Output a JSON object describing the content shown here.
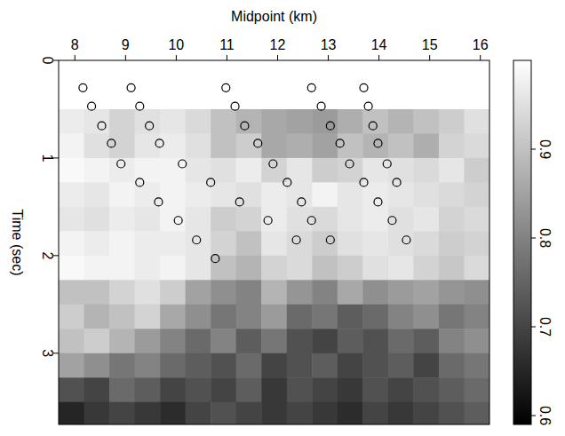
{
  "chart_data": {
    "type": "heatmap",
    "x_label": "Midpoint (km)",
    "y_label": "Time (sec)",
    "xlim": [
      7.68,
      16.18
    ],
    "xticks": [
      8,
      9,
      10,
      11,
      12,
      13,
      14,
      15,
      16
    ],
    "ylim": [
      0,
      3.73
    ],
    "yticks": [
      0,
      1,
      2,
      3
    ],
    "cells": {
      "x": [
        7.93,
        8.43,
        8.93,
        9.43,
        9.93,
        10.43,
        10.93,
        11.43,
        11.93,
        12.43,
        12.93,
        13.43,
        13.93,
        14.43,
        14.93,
        15.43,
        15.93
      ],
      "y": [
        0.125,
        0.375,
        0.625,
        0.875,
        1.125,
        1.375,
        1.625,
        1.875,
        2.125,
        2.375,
        2.625,
        2.875,
        3.125,
        3.375,
        3.625
      ],
      "values": [
        [
          1,
          1,
          1,
          1,
          1,
          1,
          1,
          1,
          1,
          1,
          1,
          1,
          1,
          1,
          1,
          1,
          1
        ],
        [
          1,
          1,
          1,
          1,
          1,
          1,
          1,
          1,
          1,
          1,
          1,
          1,
          1,
          1,
          1,
          1,
          1
        ],
        [
          0.97,
          0.96,
          0.93,
          0.95,
          0.96,
          0.94,
          0.9,
          0.88,
          0.86,
          0.85,
          0.84,
          0.87,
          0.9,
          0.88,
          0.9,
          0.92,
          0.95
        ],
        [
          0.98,
          0.95,
          0.93,
          0.96,
          0.97,
          0.95,
          0.9,
          0.92,
          0.86,
          0.87,
          0.85,
          0.9,
          0.88,
          0.9,
          0.87,
          0.93,
          0.94
        ],
        [
          0.99,
          0.98,
          0.97,
          0.98,
          0.98,
          0.96,
          0.95,
          0.97,
          0.93,
          0.96,
          0.92,
          0.93,
          0.96,
          0.95,
          0.94,
          0.96,
          0.92
        ],
        [
          0.97,
          0.96,
          0.98,
          0.97,
          0.98,
          0.97,
          0.96,
          0.95,
          0.97,
          0.96,
          0.98,
          0.96,
          0.97,
          0.96,
          0.95,
          0.94,
          0.93
        ],
        [
          0.96,
          0.95,
          0.97,
          0.96,
          0.98,
          0.96,
          0.92,
          0.93,
          0.97,
          0.95,
          0.94,
          0.96,
          0.97,
          0.95,
          0.96,
          0.93,
          0.94
        ],
        [
          0.98,
          0.97,
          0.98,
          0.97,
          0.97,
          0.96,
          0.93,
          0.9,
          0.96,
          0.94,
          0.92,
          0.95,
          0.96,
          0.95,
          0.94,
          0.92,
          0.93
        ],
        [
          0.99,
          0.98,
          0.98,
          0.97,
          0.98,
          0.96,
          0.9,
          0.88,
          0.93,
          0.94,
          0.9,
          0.92,
          0.95,
          0.96,
          0.93,
          0.91,
          0.94
        ],
        [
          0.9,
          0.9,
          0.93,
          0.95,
          0.92,
          0.85,
          0.82,
          0.8,
          0.88,
          0.83,
          0.8,
          0.86,
          0.82,
          0.84,
          0.85,
          0.83,
          0.82
        ],
        [
          0.92,
          0.88,
          0.9,
          0.93,
          0.86,
          0.82,
          0.78,
          0.8,
          0.84,
          0.76,
          0.78,
          0.74,
          0.76,
          0.8,
          0.82,
          0.78,
          0.8
        ],
        [
          0.9,
          0.92,
          0.88,
          0.84,
          0.8,
          0.76,
          0.8,
          0.74,
          0.78,
          0.72,
          0.7,
          0.74,
          0.72,
          0.76,
          0.74,
          0.8,
          0.82
        ],
        [
          0.85,
          0.82,
          0.78,
          0.8,
          0.76,
          0.74,
          0.72,
          0.76,
          0.7,
          0.72,
          0.74,
          0.7,
          0.72,
          0.74,
          0.7,
          0.76,
          0.78
        ],
        [
          0.72,
          0.7,
          0.76,
          0.74,
          0.7,
          0.72,
          0.7,
          0.74,
          0.68,
          0.72,
          0.7,
          0.68,
          0.72,
          0.7,
          0.72,
          0.74,
          0.76
        ],
        [
          0.65,
          0.68,
          0.7,
          0.68,
          0.66,
          0.7,
          0.72,
          0.7,
          0.68,
          0.7,
          0.68,
          0.66,
          0.7,
          0.68,
          0.7,
          0.72,
          0.74
        ]
      ]
    },
    "colorbar": {
      "range": [
        0.59,
        1.0
      ],
      "ticks": [
        0.6,
        0.7,
        0.8,
        0.9
      ]
    },
    "points": {
      "marker": "circle",
      "color": "#000000",
      "x": [
        8.16,
        8.33,
        8.53,
        8.72,
        8.91,
        9.28,
        9.65,
        10.04,
        10.4,
        10.77,
        9.11,
        9.28,
        9.47,
        9.67,
        10.12,
        10.68,
        11.25,
        11.81,
        12.37,
        10.98,
        11.16,
        11.35,
        11.61,
        11.91,
        12.19,
        12.47,
        12.67,
        13.04,
        12.67,
        12.86,
        13.04,
        13.23,
        13.42,
        13.7,
        13.98,
        14.26,
        14.54,
        13.7,
        13.79,
        13.88,
        13.98,
        14.16,
        14.35
      ],
      "y": [
        0.28,
        0.47,
        0.67,
        0.85,
        1.06,
        1.25,
        1.45,
        1.64,
        1.84,
        2.03,
        0.28,
        0.47,
        0.67,
        0.85,
        1.06,
        1.25,
        1.45,
        1.64,
        1.84,
        0.28,
        0.47,
        0.67,
        0.85,
        1.06,
        1.25,
        1.45,
        1.64,
        1.84,
        0.28,
        0.47,
        0.67,
        0.85,
        1.06,
        1.25,
        1.45,
        1.64,
        1.84,
        0.28,
        0.47,
        0.67,
        0.85,
        1.06,
        1.25
      ]
    }
  }
}
